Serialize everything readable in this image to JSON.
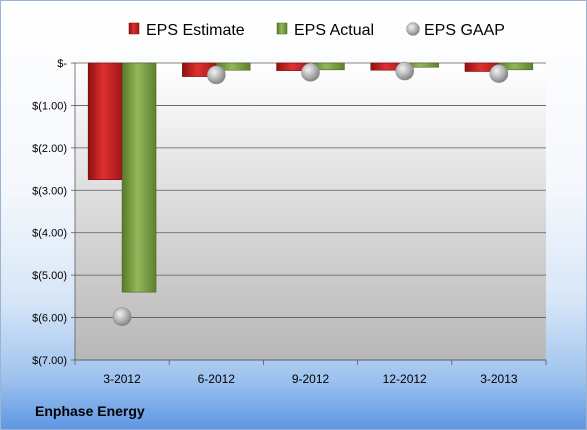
{
  "company": "Enphase Energy",
  "colors": {
    "estimate": "#d42020",
    "actual": "#7ea040",
    "gaap": "#b0b0b0"
  },
  "chart_data": {
    "type": "bar",
    "categories": [
      "3-2012",
      "6-2012",
      "9-2012",
      "12-2012",
      "3-2013"
    ],
    "series": [
      {
        "name": "EPS Estimate",
        "kind": "bar",
        "values": [
          -2.75,
          -0.32,
          -0.18,
          -0.17,
          -0.2
        ]
      },
      {
        "name": "EPS Actual",
        "kind": "bar",
        "values": [
          -5.4,
          -0.17,
          -0.16,
          -0.1,
          -0.16
        ]
      },
      {
        "name": "EPS GAAP",
        "kind": "point",
        "values": [
          -5.98,
          -0.28,
          -0.22,
          -0.19,
          -0.25
        ]
      }
    ],
    "ylim": [
      -7,
      0
    ],
    "yticks": [
      0,
      -1,
      -2,
      -3,
      -4,
      -5,
      -6,
      -7
    ],
    "ytick_labels": [
      "$-",
      "$(1.00)",
      "$(2.00)",
      "$(3.00)",
      "$(4.00)",
      "$(5.00)",
      "$(6.00)",
      "$(7.00)"
    ],
    "legend_position": "top",
    "grid": true
  }
}
